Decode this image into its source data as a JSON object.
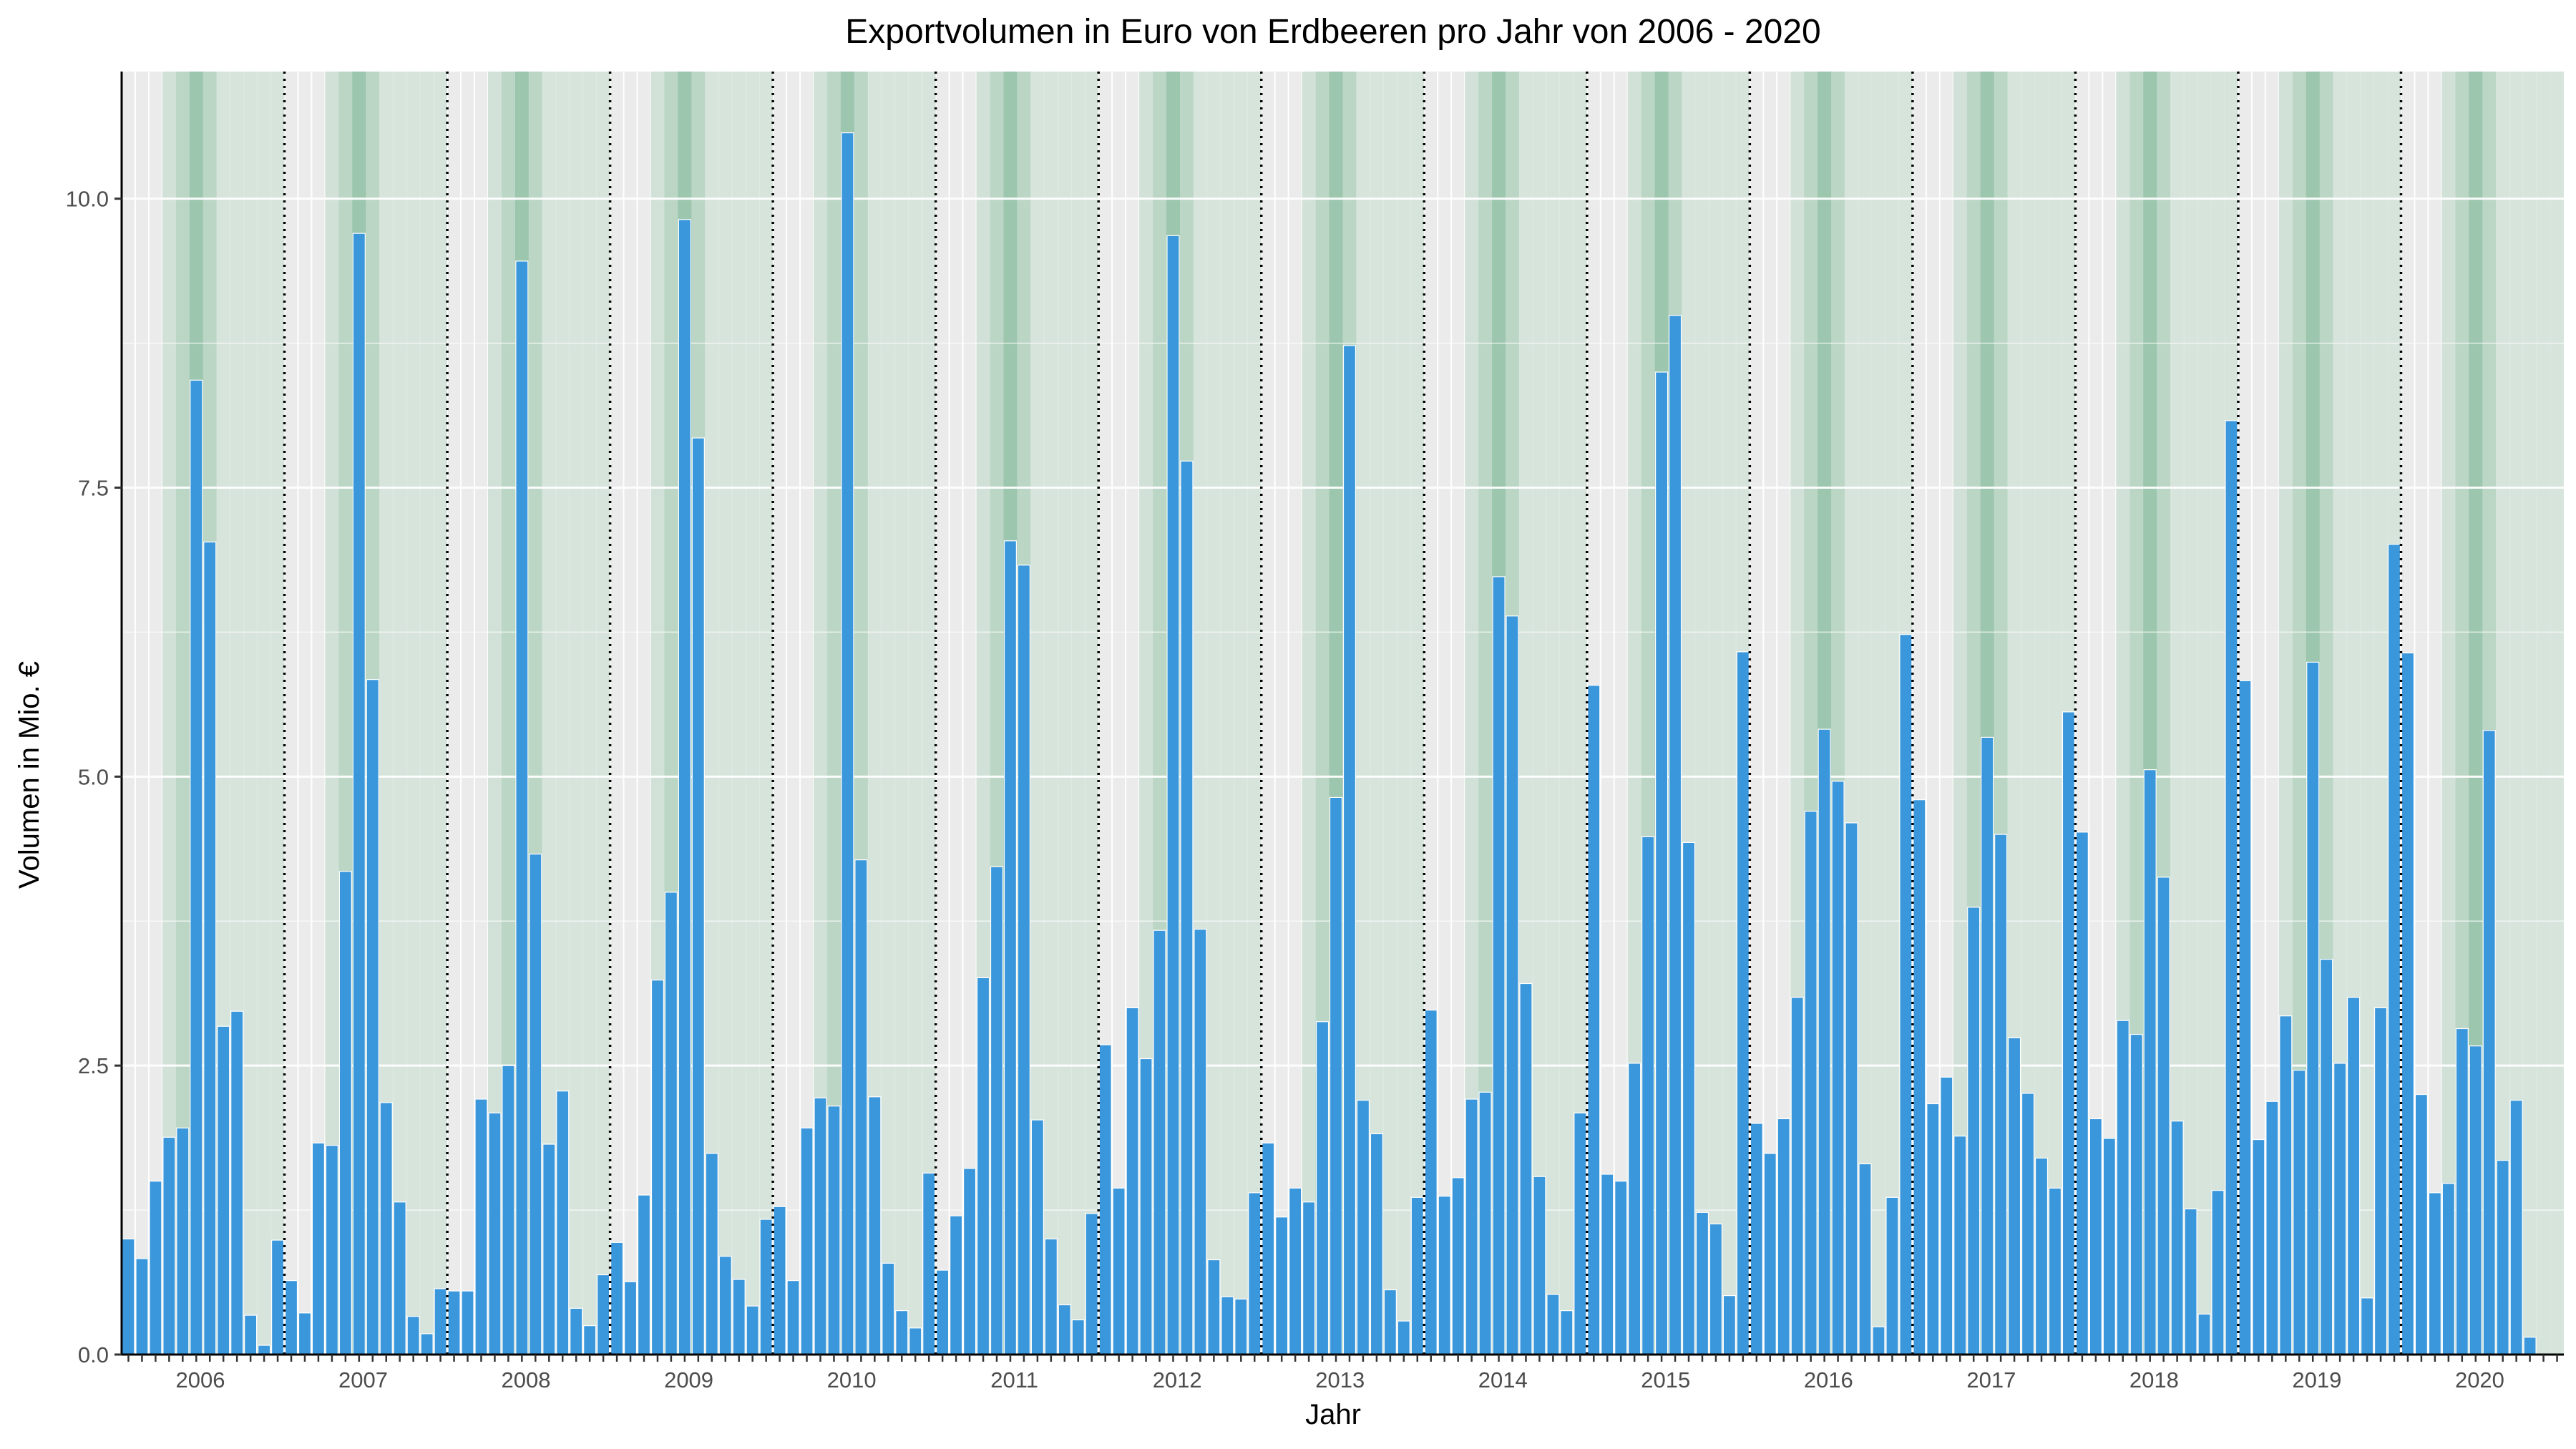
{
  "chart_data": {
    "type": "bar",
    "title": "Exportvolumen in Euro von Erdbeeren pro Jahr von 2006 - 2020",
    "xlabel": "Jahr",
    "ylabel": "Volumen in Mio. €",
    "ylim": [
      0,
      11.1
    ],
    "y_ticks": [
      "0.0",
      "2.5",
      "5.0",
      "7.5",
      "10.0"
    ],
    "years": [
      "2006",
      "2007",
      "2008",
      "2009",
      "2010",
      "2011",
      "2012",
      "2013",
      "2014",
      "2015",
      "2016",
      "2017",
      "2018",
      "2019",
      "2020"
    ],
    "months_per_year": 12,
    "grid": true,
    "season_shading": {
      "light_months": [
        3,
        4,
        5,
        6,
        7,
        8,
        9,
        10,
        11
      ],
      "dark_months": [
        4,
        5,
        6
      ],
      "colors": [
        "#e6efea",
        "#cfe0d6",
        "#b2d1bf",
        "#8fbfa3"
      ]
    },
    "colors": {
      "bar": "#3a97db",
      "panel": "#ebebeb",
      "season_base": "#d5e3da",
      "season_peak": "#8fbfa3",
      "year_separator": "#000000"
    },
    "values": [
      [
        1.0,
        0.83,
        1.5,
        1.88,
        1.96,
        8.43,
        7.03,
        2.84,
        2.97,
        0.34,
        0.08,
        0.99
      ],
      [
        0.64,
        0.36,
        1.83,
        1.81,
        4.18,
        9.7,
        5.84,
        2.18,
        1.32,
        0.33,
        0.18,
        0.57
      ],
      [
        0.55,
        0.55,
        2.21,
        2.09,
        2.5,
        9.46,
        4.33,
        1.82,
        2.28,
        0.4,
        0.25,
        0.69
      ],
      [
        0.97,
        0.63,
        1.38,
        3.24,
        4.0,
        9.82,
        7.93,
        1.74,
        0.85,
        0.65,
        0.42,
        1.17
      ],
      [
        1.28,
        0.64,
        1.96,
        2.22,
        2.15,
        10.57,
        4.28,
        2.23,
        0.79,
        0.38,
        0.23,
        1.57
      ],
      [
        0.73,
        1.2,
        1.61,
        3.26,
        4.22,
        7.04,
        6.83,
        2.03,
        1.0,
        0.43,
        0.3,
        1.22
      ],
      [
        2.68,
        1.44,
        3.0,
        2.56,
        3.67,
        9.68,
        7.73,
        3.68,
        0.82,
        0.5,
        0.48,
        1.4
      ],
      [
        1.83,
        1.19,
        1.44,
        1.32,
        2.88,
        4.82,
        8.73,
        2.2,
        1.91,
        0.56,
        0.29,
        1.36
      ],
      [
        2.98,
        1.37,
        1.53,
        2.21,
        2.27,
        6.73,
        6.39,
        3.21,
        1.54,
        0.52,
        0.38,
        2.09
      ],
      [
        5.79,
        1.56,
        1.5,
        2.52,
        4.48,
        8.5,
        8.99,
        4.43,
        1.23,
        1.13,
        0.51,
        6.08
      ],
      [
        2.0,
        1.74,
        2.04,
        3.09,
        4.7,
        5.41,
        4.96,
        4.6,
        1.65,
        0.24,
        1.36,
        6.23
      ],
      [
        4.8,
        2.17,
        2.4,
        1.89,
        3.87,
        5.34,
        4.5,
        2.74,
        2.26,
        1.7,
        1.44,
        5.56
      ],
      [
        4.52,
        2.04,
        1.87,
        2.89,
        2.77,
        5.06,
        4.13,
        2.02,
        1.26,
        0.35,
        1.42,
        8.08
      ],
      [
        5.83,
        1.86,
        2.19,
        2.93,
        2.46,
        5.99,
        3.42,
        2.52,
        3.09,
        0.49,
        3.0,
        7.01
      ],
      [
        6.07,
        2.25,
        1.4,
        1.48,
        2.82,
        2.67,
        5.4,
        1.68,
        2.2,
        0.15
      ]
    ]
  }
}
